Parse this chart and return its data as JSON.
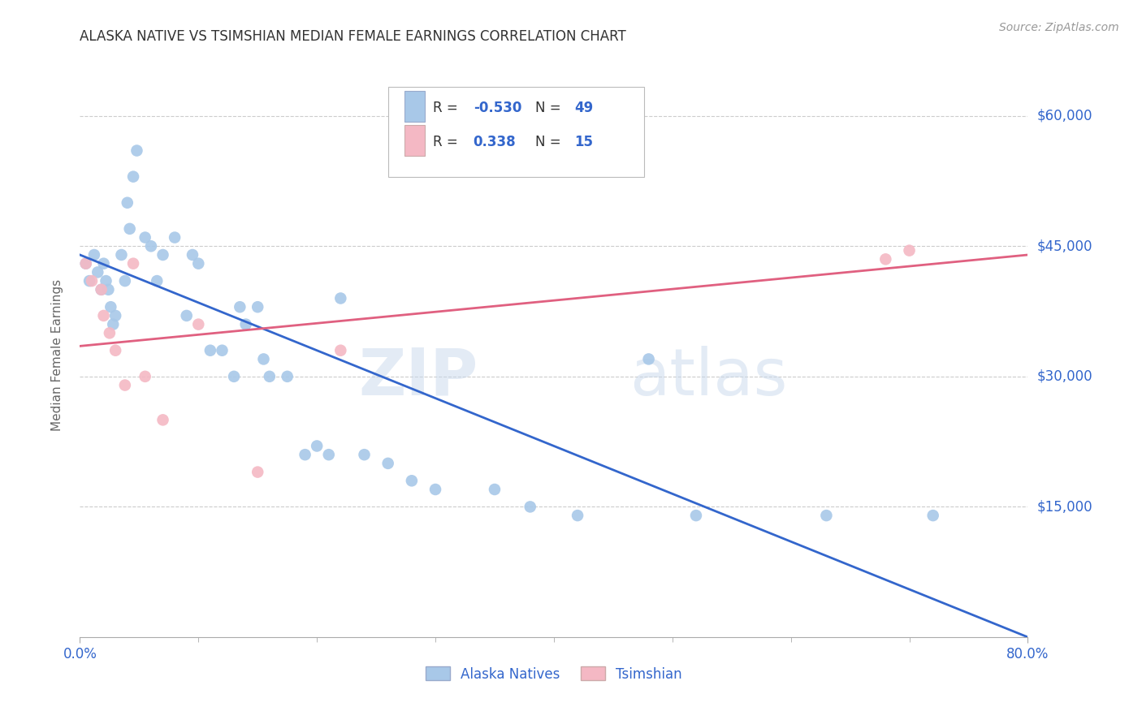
{
  "title": "ALASKA NATIVE VS TSIMSHIAN MEDIAN FEMALE EARNINGS CORRELATION CHART",
  "source": "Source: ZipAtlas.com",
  "ylabel": "Median Female Earnings",
  "ytick_labels": [
    "$60,000",
    "$45,000",
    "$30,000",
    "$15,000"
  ],
  "ytick_values": [
    60000,
    45000,
    30000,
    15000
  ],
  "xmin": 0.0,
  "xmax": 0.8,
  "ymin": 0,
  "ymax": 65000,
  "blue_color": "#a8c8e8",
  "pink_color": "#f4b8c4",
  "blue_line_color": "#3366cc",
  "pink_line_color": "#e06080",
  "legend_label_blue": "Alaska Natives",
  "legend_label_pink": "Tsimshian",
  "watermark_zip": "ZIP",
  "watermark_atlas": "atlas",
  "blue_dots_x": [
    0.005,
    0.008,
    0.012,
    0.015,
    0.018,
    0.02,
    0.022,
    0.024,
    0.026,
    0.028,
    0.03,
    0.035,
    0.038,
    0.04,
    0.042,
    0.045,
    0.048,
    0.055,
    0.06,
    0.065,
    0.07,
    0.08,
    0.09,
    0.095,
    0.1,
    0.11,
    0.12,
    0.13,
    0.135,
    0.14,
    0.15,
    0.155,
    0.16,
    0.175,
    0.19,
    0.2,
    0.21,
    0.22,
    0.24,
    0.26,
    0.28,
    0.3,
    0.35,
    0.38,
    0.42,
    0.48,
    0.52,
    0.63,
    0.72
  ],
  "blue_dots_y": [
    43000,
    41000,
    44000,
    42000,
    40000,
    43000,
    41000,
    40000,
    38000,
    36000,
    37000,
    44000,
    41000,
    50000,
    47000,
    53000,
    56000,
    46000,
    45000,
    41000,
    44000,
    46000,
    37000,
    44000,
    43000,
    33000,
    33000,
    30000,
    38000,
    36000,
    38000,
    32000,
    30000,
    30000,
    21000,
    22000,
    21000,
    39000,
    21000,
    20000,
    18000,
    17000,
    17000,
    15000,
    14000,
    32000,
    14000,
    14000,
    14000
  ],
  "pink_dots_x": [
    0.005,
    0.01,
    0.018,
    0.02,
    0.025,
    0.03,
    0.038,
    0.045,
    0.055,
    0.07,
    0.1,
    0.15,
    0.22,
    0.68,
    0.7
  ],
  "pink_dots_y": [
    43000,
    41000,
    40000,
    37000,
    35000,
    33000,
    29000,
    43000,
    30000,
    25000,
    36000,
    19000,
    33000,
    43500,
    44500
  ],
  "blue_trend_x": [
    0.0,
    0.8
  ],
  "blue_trend_y": [
    44000,
    0
  ],
  "pink_trend_x": [
    0.0,
    0.8
  ],
  "pink_trend_y": [
    33500,
    44000
  ],
  "xtick_positions_minor": [
    0.1,
    0.2,
    0.3,
    0.4,
    0.5,
    0.6,
    0.7
  ],
  "grid_color": "#cccccc",
  "background_color": "#ffffff",
  "title_color": "#333333",
  "axis_color": "#3366cc",
  "label_color": "#666666"
}
